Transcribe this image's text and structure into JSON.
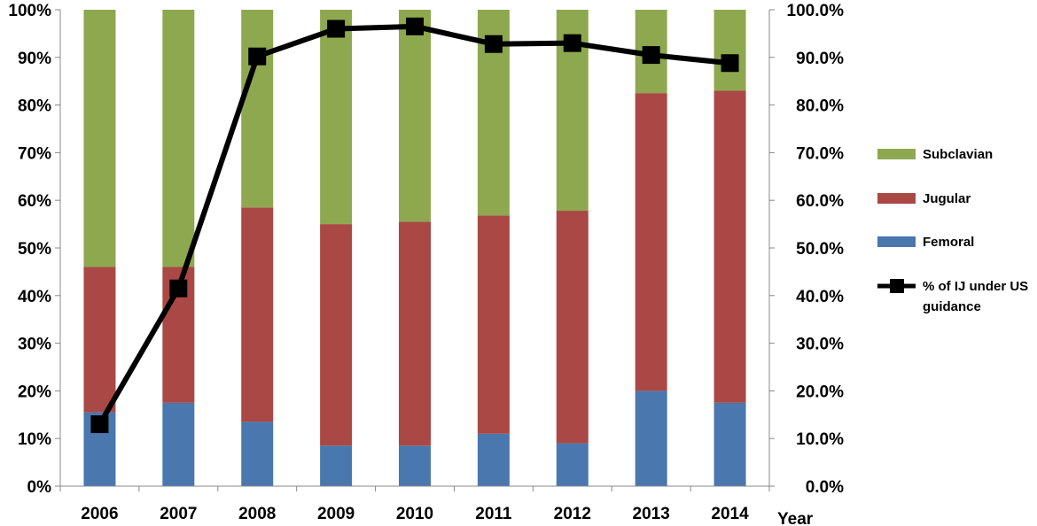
{
  "chart_data": {
    "type": "bar",
    "stacked": true,
    "categories": [
      "2006",
      "2007",
      "2008",
      "2009",
      "2010",
      "2011",
      "2012",
      "2013",
      "2014"
    ],
    "series": [
      {
        "name": "Femoral",
        "color": "#4a77ae",
        "values": [
          15.5,
          17.5,
          13.5,
          8.5,
          8.5,
          11,
          9,
          20,
          17.5
        ]
      },
      {
        "name": "Jugular",
        "color": "#aa4845",
        "values": [
          30.5,
          28.5,
          45,
          46.5,
          47,
          45.8,
          48.8,
          62.5,
          65.5
        ]
      },
      {
        "name": "Subclavian",
        "color": "#8ea84f",
        "values": [
          54,
          54,
          41.5,
          45,
          44.5,
          43.2,
          42.2,
          17.5,
          17
        ]
      }
    ],
    "line_series": {
      "name": "% of IJ under US guidance",
      "name_lines": [
        "% of IJ under US",
        "guidance"
      ],
      "color": "#000000",
      "values": [
        13,
        41.5,
        90.2,
        96,
        96.5,
        92.8,
        93,
        90.5,
        88.8
      ]
    },
    "y_left": {
      "ticks": [
        "0%",
        "10%",
        "20%",
        "30%",
        "40%",
        "50%",
        "60%",
        "70%",
        "80%",
        "90%",
        "100%"
      ],
      "ylim": [
        0,
        100
      ]
    },
    "y_right": {
      "ticks": [
        "0.0%",
        "10.0%",
        "20.0%",
        "30.0%",
        "40.0%",
        "50.0%",
        "60.0%",
        "70.0%",
        "80.0%",
        "90.0%",
        "100.0%"
      ],
      "ylim": [
        0,
        100
      ]
    },
    "xlabel": "Year",
    "legend": {
      "placement": "right",
      "order": [
        "Subclavian",
        "Jugular",
        "Femoral",
        "% of IJ under US guidance"
      ]
    },
    "grid": false
  }
}
